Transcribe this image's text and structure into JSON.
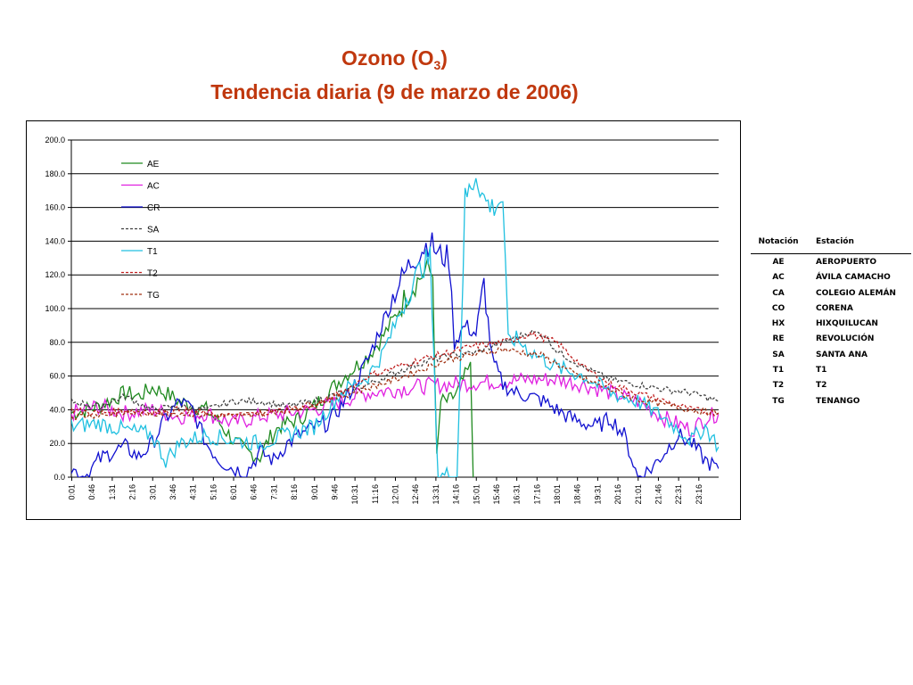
{
  "title": {
    "line1_prefix": "Ozono (O",
    "line1_sub": "3",
    "line1_suffix": ")",
    "line2": "Tendencia diaria (9 de marzo de 2006)"
  },
  "chart_data": {
    "type": "line",
    "title": "Ozono (O3) Tendencia diaria (9 de marzo de 2006)",
    "ylim": [
      0,
      200
    ],
    "y_ticks": [
      "0.0",
      "20.0",
      "40.0",
      "60.0",
      "80.0",
      "100.0",
      "120.0",
      "140.0",
      "160.0",
      "180.0",
      "200.0"
    ],
    "x_ticks": [
      "0:01",
      "0:46",
      "1:31",
      "2:16",
      "3:01",
      "3:46",
      "4:31",
      "5:16",
      "6:01",
      "6:46",
      "7:31",
      "8:16",
      "9:01",
      "9:46",
      "10:31",
      "11:16",
      "12:01",
      "12:46",
      "13:31",
      "14:16",
      "15:01",
      "15:46",
      "16:31",
      "17:16",
      "18:01",
      "18:46",
      "19:31",
      "20:16",
      "21:01",
      "21:46",
      "22:31",
      "23:16"
    ],
    "x_range_hours": [
      0,
      24
    ],
    "legend_placement": "top-left",
    "grid": true,
    "series": [
      {
        "name": "AE",
        "color": "#1f8a1f",
        "dash": false,
        "points": [
          [
            0,
            38
          ],
          [
            1,
            42
          ],
          [
            2,
            50
          ],
          [
            2.5,
            48
          ],
          [
            3,
            53
          ],
          [
            3.5,
            50
          ],
          [
            4,
            45
          ],
          [
            5,
            40
          ],
          [
            5.5,
            32
          ],
          [
            6,
            22
          ],
          [
            6.5,
            15
          ],
          [
            7,
            12
          ],
          [
            7.3,
            22
          ],
          [
            7.7,
            30
          ],
          [
            8,
            32
          ],
          [
            8.5,
            35
          ],
          [
            9,
            42
          ],
          [
            9.5,
            50
          ],
          [
            10,
            58
          ],
          [
            10.5,
            65
          ],
          [
            11,
            72
          ],
          [
            11.5,
            82
          ],
          [
            12,
            95
          ],
          [
            12.5,
            110
          ],
          [
            13,
            120
          ],
          [
            13.2,
            123
          ],
          [
            13.4,
            120
          ],
          [
            13.55,
            10
          ],
          [
            13.7,
            45
          ],
          [
            14,
            45
          ],
          [
            14.3,
            50
          ],
          [
            14.6,
            60
          ],
          [
            14.8,
            65
          ],
          [
            14.9,
            0
          ]
        ]
      },
      {
        "name": "AC",
        "color": "#e020e0",
        "dash": false,
        "points": [
          [
            0,
            38
          ],
          [
            1,
            42
          ],
          [
            2,
            38
          ],
          [
            3,
            40
          ],
          [
            4,
            36
          ],
          [
            5,
            38
          ],
          [
            6,
            32
          ],
          [
            7,
            36
          ],
          [
            8,
            38
          ],
          [
            9,
            40
          ],
          [
            10,
            45
          ],
          [
            10.5,
            48
          ],
          [
            11,
            50
          ],
          [
            12,
            52
          ],
          [
            13,
            54
          ],
          [
            14,
            55
          ],
          [
            15,
            56
          ],
          [
            16,
            57
          ],
          [
            17,
            58
          ],
          [
            18,
            58
          ],
          [
            19,
            55
          ],
          [
            20,
            50
          ],
          [
            21,
            45
          ],
          [
            22,
            35
          ],
          [
            23,
            28
          ],
          [
            23.5,
            35
          ],
          [
            24,
            38
          ]
        ]
      },
      {
        "name": "CR",
        "color": "#1010d0",
        "dash": false,
        "points": [
          [
            0,
            5
          ],
          [
            0.5,
            0
          ],
          [
            1,
            10
          ],
          [
            1.5,
            15
          ],
          [
            2,
            18
          ],
          [
            2.5,
            12
          ],
          [
            3,
            20
          ],
          [
            3.5,
            35
          ],
          [
            4,
            45
          ],
          [
            4.5,
            40
          ],
          [
            5,
            20
          ],
          [
            5.5,
            10
          ],
          [
            6,
            5
          ],
          [
            6.5,
            3
          ],
          [
            7,
            15
          ],
          [
            7.5,
            10
          ],
          [
            8,
            20
          ],
          [
            8.5,
            25
          ],
          [
            9,
            30
          ],
          [
            9.5,
            32
          ],
          [
            10,
            42
          ],
          [
            10.5,
            55
          ],
          [
            11,
            70
          ],
          [
            11.5,
            90
          ],
          [
            12,
            110
          ],
          [
            12.5,
            125
          ],
          [
            13,
            135
          ],
          [
            13.3,
            140
          ],
          [
            13.6,
            132
          ],
          [
            14,
            130
          ],
          [
            14.2,
            80
          ],
          [
            14.6,
            90
          ],
          [
            15,
            85
          ],
          [
            15.3,
            115
          ],
          [
            15.6,
            70
          ],
          [
            16,
            55
          ],
          [
            16.5,
            50
          ],
          [
            17,
            48
          ],
          [
            17.5,
            45
          ],
          [
            18,
            40
          ],
          [
            18.5,
            35
          ],
          [
            19,
            32
          ],
          [
            19.5,
            30
          ],
          [
            20,
            35
          ],
          [
            20.5,
            25
          ],
          [
            21,
            0
          ],
          [
            21.5,
            5
          ],
          [
            22,
            15
          ],
          [
            22.5,
            25
          ],
          [
            23,
            20
          ],
          [
            23.5,
            10
          ],
          [
            24,
            5
          ]
        ]
      },
      {
        "name": "SA",
        "color": "#404040",
        "dash": true,
        "points": [
          [
            0,
            45
          ],
          [
            1,
            42
          ],
          [
            2,
            48
          ],
          [
            3,
            40
          ],
          [
            4,
            42
          ],
          [
            5,
            40
          ],
          [
            6,
            45
          ],
          [
            7,
            45
          ],
          [
            8,
            42
          ],
          [
            9,
            45
          ],
          [
            10,
            50
          ],
          [
            11,
            55
          ],
          [
            12,
            62
          ],
          [
            13,
            68
          ],
          [
            14,
            72
          ],
          [
            15,
            74
          ],
          [
            16,
            80
          ],
          [
            17,
            86
          ],
          [
            17.5,
            85
          ],
          [
            18,
            75
          ],
          [
            19,
            65
          ],
          [
            20,
            58
          ],
          [
            21,
            55
          ],
          [
            22,
            52
          ],
          [
            23,
            50
          ],
          [
            24,
            45
          ]
        ]
      },
      {
        "name": "T1",
        "color": "#20c0e0",
        "dash": false,
        "points": [
          [
            0,
            30
          ],
          [
            1,
            32
          ],
          [
            2,
            28
          ],
          [
            3,
            25
          ],
          [
            3.5,
            10
          ],
          [
            4,
            20
          ],
          [
            5,
            25
          ],
          [
            6,
            22
          ],
          [
            7,
            20
          ],
          [
            8,
            25
          ],
          [
            9,
            30
          ],
          [
            9.5,
            40
          ],
          [
            10,
            50
          ],
          [
            11,
            60
          ],
          [
            11.5,
            72
          ],
          [
            12,
            90
          ],
          [
            12.5,
            110
          ],
          [
            13,
            125
          ],
          [
            13.3,
            130
          ],
          [
            13.6,
            0
          ],
          [
            14,
            2
          ],
          [
            14.3,
            0
          ],
          [
            14.6,
            165
          ],
          [
            14.9,
            175
          ],
          [
            15,
            180
          ],
          [
            15.3,
            165
          ],
          [
            15.6,
            160
          ],
          [
            16,
            165
          ],
          [
            16.2,
            80
          ],
          [
            16.5,
            82
          ],
          [
            17,
            75
          ],
          [
            17.5,
            70
          ],
          [
            18,
            65
          ],
          [
            19,
            60
          ],
          [
            19.5,
            55
          ],
          [
            20,
            50
          ],
          [
            21,
            45
          ],
          [
            22,
            35
          ],
          [
            23,
            22
          ],
          [
            23.5,
            30
          ],
          [
            24,
            18
          ]
        ]
      },
      {
        "name": "T2",
        "color": "#c02020",
        "dash": true,
        "points": [
          [
            0,
            40
          ],
          [
            1,
            38
          ],
          [
            2,
            40
          ],
          [
            3,
            38
          ],
          [
            4,
            40
          ],
          [
            5,
            38
          ],
          [
            6,
            36
          ],
          [
            7,
            38
          ],
          [
            8,
            40
          ],
          [
            9,
            42
          ],
          [
            10,
            50
          ],
          [
            11,
            60
          ],
          [
            12,
            65
          ],
          [
            13,
            70
          ],
          [
            14,
            74
          ],
          [
            15,
            78
          ],
          [
            16,
            80
          ],
          [
            17,
            85
          ],
          [
            18,
            80
          ],
          [
            19,
            65
          ],
          [
            20,
            55
          ],
          [
            21,
            50
          ],
          [
            22,
            45
          ],
          [
            23,
            40
          ],
          [
            24,
            38
          ]
        ]
      },
      {
        "name": "TG",
        "color": "#a03010",
        "dash": true,
        "points": [
          [
            0,
            36
          ],
          [
            2,
            38
          ],
          [
            4,
            38
          ],
          [
            6,
            36
          ],
          [
            8,
            40
          ],
          [
            10,
            48
          ],
          [
            12,
            58
          ],
          [
            14,
            70
          ],
          [
            16,
            76
          ],
          [
            17.5,
            72
          ],
          [
            19,
            58
          ],
          [
            21,
            46
          ],
          [
            23,
            40
          ],
          [
            24,
            38
          ]
        ]
      }
    ]
  },
  "station_table": {
    "header": {
      "notation": "Notación",
      "station": "Estación"
    },
    "rows": [
      {
        "notation": "AE",
        "station": "AEROPUERTO"
      },
      {
        "notation": "AC",
        "station": "ÁVILA CAMACHO"
      },
      {
        "notation": "CA",
        "station": "COLEGIO ALEMÁN"
      },
      {
        "notation": "CO",
        "station": "CORENA"
      },
      {
        "notation": "HX",
        "station": "HIXQUILUCAN"
      },
      {
        "notation": "RE",
        "station": "REVOLUCIÓN"
      },
      {
        "notation": "SA",
        "station": "SANTA ANA"
      },
      {
        "notation": "T1",
        "station": "T1"
      },
      {
        "notation": "T2",
        "station": "T2"
      },
      {
        "notation": "TG",
        "station": "TENANGO"
      }
    ]
  }
}
